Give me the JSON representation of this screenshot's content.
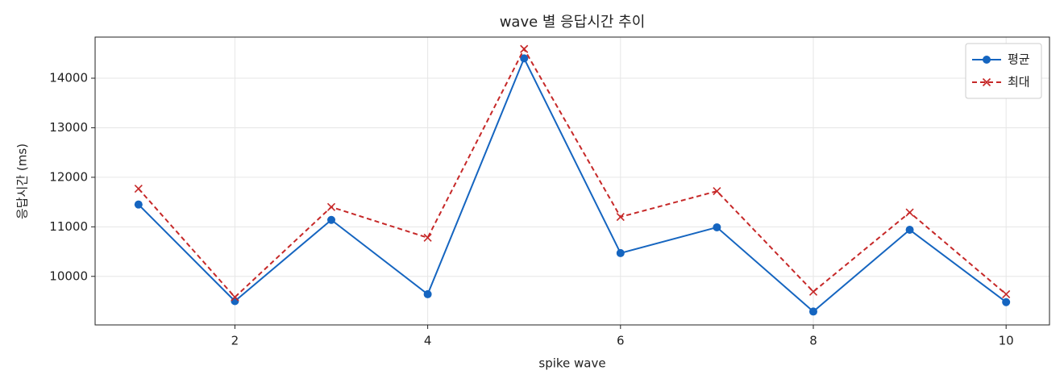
{
  "chart_data": {
    "type": "line",
    "title": "wave 별 응답시간 추이",
    "xlabel": "spike wave",
    "ylabel": "응답시간 (ms)",
    "x": [
      1,
      2,
      3,
      4,
      5,
      6,
      7,
      8,
      9,
      10
    ],
    "series": [
      {
        "name": "평균",
        "color": "#1565c0",
        "marker": "circle",
        "dash": false,
        "values": [
          11450,
          9500,
          11140,
          9640,
          14400,
          10470,
          10990,
          9290,
          10940,
          9480
        ]
      },
      {
        "name": "최대",
        "color": "#c62828",
        "marker": "x",
        "dash": true,
        "values": [
          11770,
          9580,
          11400,
          10780,
          14590,
          11200,
          11720,
          9690,
          11290,
          9640
        ]
      }
    ],
    "xlim": [
      0.55,
      10.45
    ],
    "xticks": [
      2,
      4,
      6,
      8,
      10
    ],
    "ylim": [
      9020,
      14830
    ],
    "yticks": [
      10000,
      11000,
      12000,
      13000,
      14000
    ],
    "grid": true,
    "legend": "upper right"
  }
}
